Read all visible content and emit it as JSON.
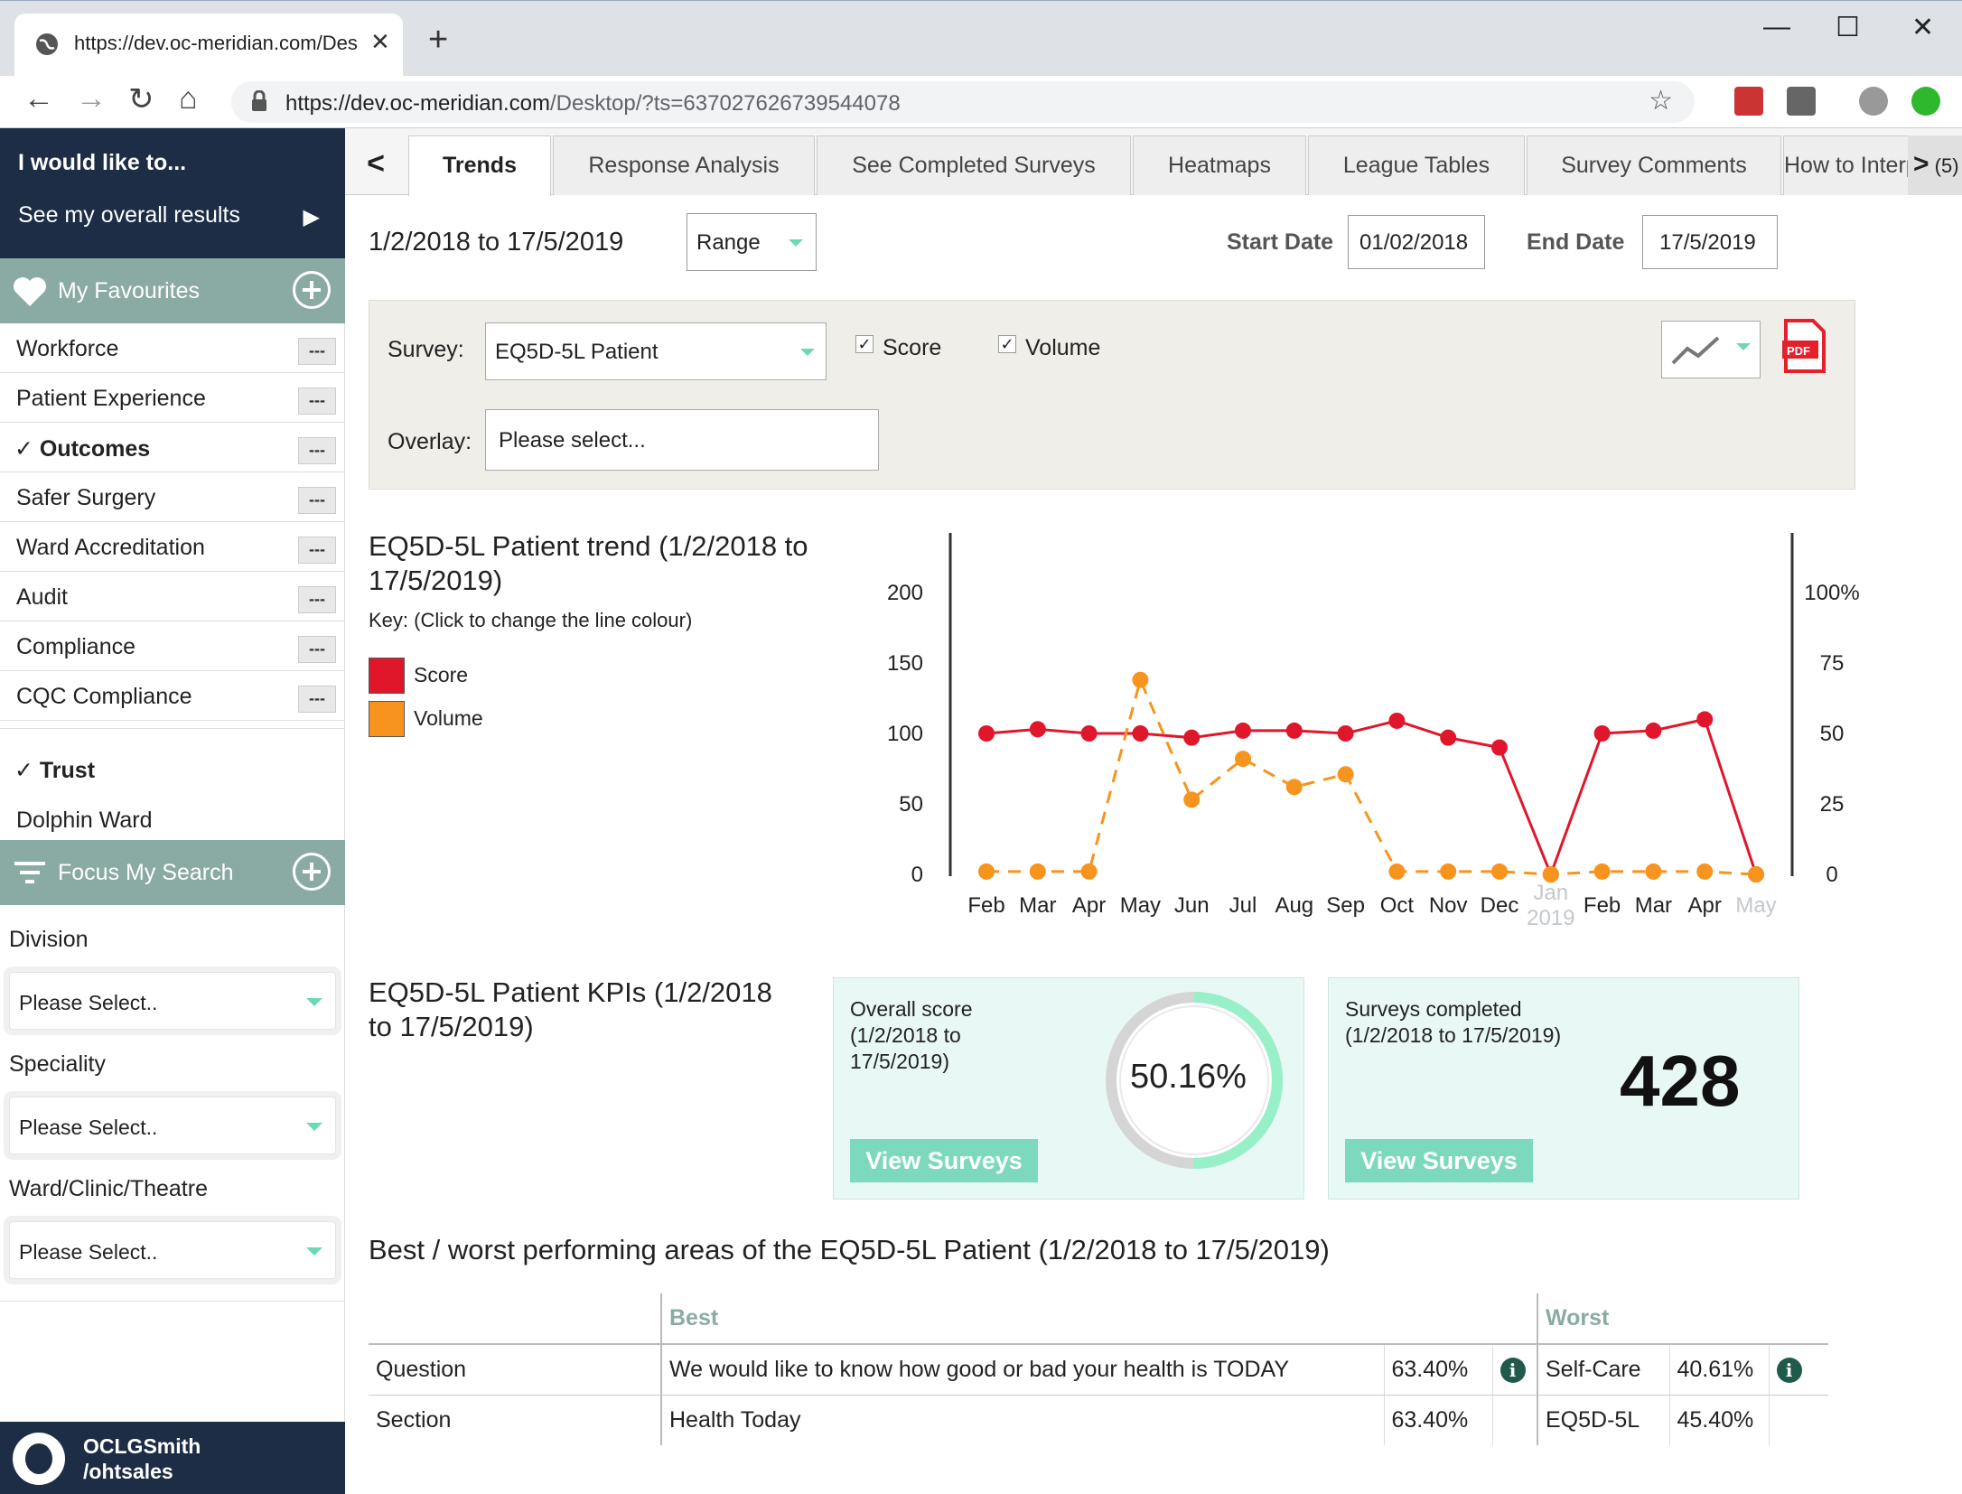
{
  "browser": {
    "tab_title": "https://dev.oc-meridian.com/Des",
    "url_host": "https://dev.oc-meridian.com",
    "url_rest": "/Desktop/?ts=637027626739544078",
    "new_tab": "+",
    "close_tab": "✕",
    "minimize": "—",
    "maximize": "☐",
    "close_window": "✕"
  },
  "sidebar": {
    "heading": "I would like to...",
    "action": "See my overall results",
    "favourites_label": "My Favourites",
    "favourites": [
      {
        "label": "Workforce",
        "selected": false
      },
      {
        "label": "Patient Experience",
        "selected": false
      },
      {
        "label": "✓ Outcomes",
        "selected": true
      },
      {
        "label": "Safer Surgery",
        "selected": false
      },
      {
        "label": "Ward Accreditation",
        "selected": false
      },
      {
        "label": "Audit",
        "selected": false
      },
      {
        "label": "Compliance",
        "selected": false
      },
      {
        "label": "CQC Compliance",
        "selected": false
      }
    ],
    "dash": "---",
    "trust": "✓ Trust",
    "ward": "Dolphin Ward",
    "focus_label": "Focus My Search",
    "division_label": "Division",
    "division_value": "Please Select..",
    "speciality_label": "Speciality",
    "speciality_value": "Please Select..",
    "ward_label": "Ward/Clinic/Theatre",
    "ward_value": "Please Select..",
    "user1": "OCLGSmith",
    "user2": "/ohtsales"
  },
  "tabs": {
    "prev": "<",
    "items": [
      "Trends",
      "Response Analysis",
      "See Completed Surveys",
      "Heatmaps",
      "League Tables",
      "Survey Comments",
      "How to Interpret"
    ],
    "next_arrow": ">",
    "next_count": "(5)"
  },
  "filters": {
    "date_range": "1/2/2018 to 17/5/2019",
    "range_label": "Range",
    "start_label": "Start Date",
    "start_value": "01/02/2018",
    "end_label": "End Date",
    "end_value": "17/5/2019",
    "survey_label": "Survey:",
    "survey_value": "EQ5D-5L Patient",
    "score_label": "Score",
    "volume_label": "Volume",
    "overlay_label": "Overlay:",
    "overlay_value": "Please select...",
    "pdf": "PDF"
  },
  "trend": {
    "title": "EQ5D-5L Patient trend (1/2/2018 to 17/5/2019)",
    "key_text": "Key: (Click to change the line colour)",
    "legend": [
      {
        "name": "Score",
        "color": "#e0162b"
      },
      {
        "name": "Volume",
        "color": "#f7941d"
      }
    ]
  },
  "chart_data": {
    "type": "line",
    "categories": [
      "Feb",
      "Mar",
      "Apr",
      "May",
      "Jun",
      "Jul",
      "Aug",
      "Sep",
      "Oct",
      "Nov",
      "Dec",
      "Jan 2019",
      "Feb",
      "Mar",
      "Apr",
      "May"
    ],
    "series": [
      {
        "name": "Score",
        "axis": "right",
        "color": "#e0162b",
        "values": [
          50,
          51.5,
          50,
          50,
          48.5,
          51,
          51,
          50,
          54.5,
          48.5,
          45,
          0,
          50,
          51,
          55,
          0
        ]
      },
      {
        "name": "Volume",
        "axis": "left",
        "color": "#f7941d",
        "dashed": true,
        "values": [
          2,
          2,
          2,
          138,
          53,
          82,
          62,
          71,
          2,
          2,
          2,
          0,
          2,
          2,
          2,
          0
        ]
      }
    ],
    "left_ticks": [
      "0",
      "50",
      "100",
      "150",
      "200"
    ],
    "right_ticks": [
      "0",
      "25",
      "50",
      "75",
      "100%"
    ],
    "left_ylim": [
      0,
      200
    ],
    "right_ylim": [
      0,
      100
    ],
    "faded_categories": [
      "Jan 2019",
      "May"
    ]
  },
  "kpis": {
    "title": "EQ5D-5L Patient KPIs (1/2/2018 to 17/5/2019)",
    "score_label": "Overall score (1/2/2018 to 17/5/2019)",
    "score_value": "50.16%",
    "score_fraction": 0.5016,
    "surveys_label": "Surveys completed (1/2/2018 to 17/5/2019)",
    "surveys_value": "428",
    "view_button": "View Surveys"
  },
  "best_worst": {
    "title": "Best / worst performing areas of the EQ5D-5L Patient (1/2/2018 to 17/5/2019)",
    "best_header": "Best",
    "worst_header": "Worst",
    "rows": [
      {
        "type": "Question",
        "best": "We would like to know how good or bad your health is TODAY",
        "best_pct": "63.40%",
        "worst": "Self-Care",
        "worst_pct": "40.61%",
        "info": true
      },
      {
        "type": "Section",
        "best": "Health Today",
        "best_pct": "63.40%",
        "worst": "EQ5D-5L",
        "worst_pct": "45.40%",
        "info": false
      }
    ],
    "info_glyph": "i"
  }
}
